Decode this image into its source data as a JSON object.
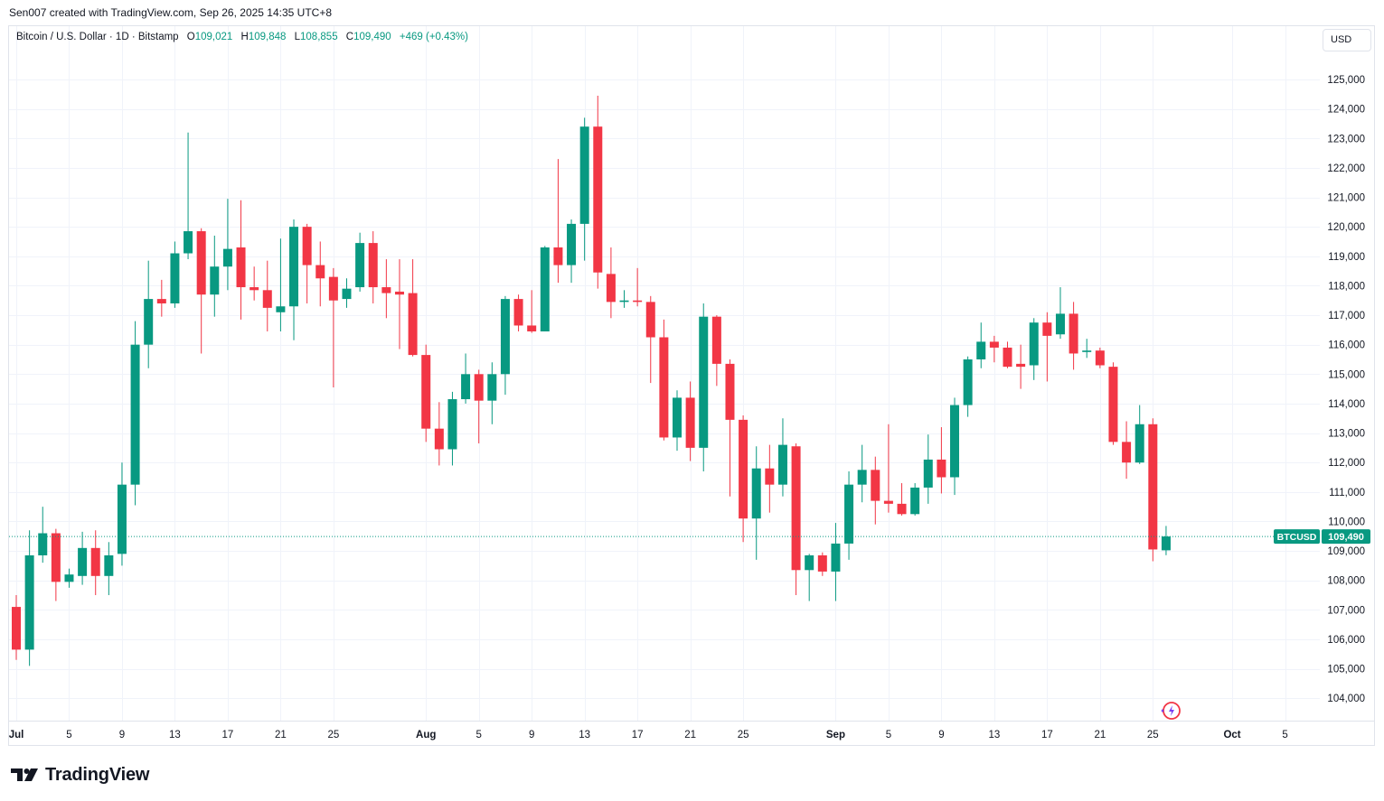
{
  "header": {
    "credit": "Sen007 created with TradingView.com, Sep 26, 2025 14:35 UTC+8"
  },
  "legend": {
    "symbol": "Bitcoin / U.S. Dollar · 1D · Bitstamp",
    "open_label": "O",
    "open": "109,021",
    "high_label": "H",
    "high": "109,848",
    "low_label": "L",
    "low": "108,855",
    "close_label": "C",
    "close": "109,490",
    "change": "+469 (+0.43%)"
  },
  "currency_button": "USD",
  "price_tag": {
    "symbol": "BTCUSD",
    "price": "109,490",
    "value": 109490
  },
  "brand": {
    "name": "TradingView"
  },
  "colors": {
    "up": "#089981",
    "down": "#f23645",
    "grid": "#f0f3fa",
    "axis_text": "#131722",
    "last_price_line": "#089981"
  },
  "chart_data": {
    "type": "candlestick",
    "title": "Bitcoin / U.S. Dollar · 1D · Bitstamp",
    "y_axis": {
      "ticks": [
        104000,
        105000,
        106000,
        107000,
        108000,
        109000,
        110000,
        111000,
        112000,
        113000,
        114000,
        115000,
        116000,
        117000,
        118000,
        119000,
        120000,
        121000,
        122000,
        123000,
        124000,
        125000
      ],
      "tick_labels": [
        "104,000",
        "105,000",
        "106,000",
        "107,000",
        "108,000",
        "109,000",
        "110,000",
        "111,000",
        "112,000",
        "113,000",
        "114,000",
        "115,000",
        "116,000",
        "117,000",
        "118,000",
        "119,000",
        "120,000",
        "121,000",
        "122,000",
        "123,000",
        "124,000",
        "125,000"
      ],
      "position": "right",
      "currency": "USD"
    },
    "x_axis": {
      "first_date": "2025-07-01",
      "tick_labels": [
        {
          "date": "2025-07-01",
          "label": "Jul",
          "bold": true
        },
        {
          "date": "2025-07-05",
          "label": "5"
        },
        {
          "date": "2025-07-09",
          "label": "9"
        },
        {
          "date": "2025-07-13",
          "label": "13"
        },
        {
          "date": "2025-07-17",
          "label": "17"
        },
        {
          "date": "2025-07-21",
          "label": "21"
        },
        {
          "date": "2025-07-25",
          "label": "25"
        },
        {
          "date": "2025-08-01",
          "label": "Aug",
          "bold": true
        },
        {
          "date": "2025-08-05",
          "label": "5"
        },
        {
          "date": "2025-08-09",
          "label": "9"
        },
        {
          "date": "2025-08-13",
          "label": "13"
        },
        {
          "date": "2025-08-17",
          "label": "17"
        },
        {
          "date": "2025-08-21",
          "label": "21"
        },
        {
          "date": "2025-08-25",
          "label": "25"
        },
        {
          "date": "2025-09-01",
          "label": "Sep",
          "bold": true
        },
        {
          "date": "2025-09-05",
          "label": "5"
        },
        {
          "date": "2025-09-09",
          "label": "9"
        },
        {
          "date": "2025-09-13",
          "label": "13"
        },
        {
          "date": "2025-09-17",
          "label": "17"
        },
        {
          "date": "2025-09-21",
          "label": "21"
        },
        {
          "date": "2025-09-25",
          "label": "25"
        },
        {
          "date": "2025-10-01",
          "label": "Oct",
          "bold": true
        },
        {
          "date": "2025-10-05",
          "label": "5"
        }
      ]
    },
    "grid": true,
    "last_price": 109490,
    "candles": [
      {
        "date": "2025-07-01",
        "o": 107100,
        "h": 107500,
        "l": 105300,
        "c": 105650
      },
      {
        "date": "2025-07-02",
        "o": 105650,
        "h": 109700,
        "l": 105100,
        "c": 108850
      },
      {
        "date": "2025-07-03",
        "o": 108850,
        "h": 110500,
        "l": 108600,
        "c": 109600
      },
      {
        "date": "2025-07-04",
        "o": 109600,
        "h": 109750,
        "l": 107300,
        "c": 107950
      },
      {
        "date": "2025-07-05",
        "o": 107950,
        "h": 108400,
        "l": 107750,
        "c": 108200
      },
      {
        "date": "2025-07-06",
        "o": 108150,
        "h": 109650,
        "l": 107850,
        "c": 109100
      },
      {
        "date": "2025-07-07",
        "o": 109100,
        "h": 109700,
        "l": 107500,
        "c": 108150
      },
      {
        "date": "2025-07-08",
        "o": 108150,
        "h": 109300,
        "l": 107500,
        "c": 108850
      },
      {
        "date": "2025-07-09",
        "o": 108900,
        "h": 112000,
        "l": 108500,
        "c": 111250
      },
      {
        "date": "2025-07-10",
        "o": 111250,
        "h": 116800,
        "l": 110550,
        "c": 116000
      },
      {
        "date": "2025-07-11",
        "o": 116000,
        "h": 118850,
        "l": 115200,
        "c": 117550
      },
      {
        "date": "2025-07-12",
        "o": 117550,
        "h": 118200,
        "l": 116950,
        "c": 117400
      },
      {
        "date": "2025-07-13",
        "o": 117400,
        "h": 119500,
        "l": 117250,
        "c": 119100
      },
      {
        "date": "2025-07-14",
        "o": 119100,
        "h": 123200,
        "l": 118900,
        "c": 119850
      },
      {
        "date": "2025-07-15",
        "o": 119850,
        "h": 119950,
        "l": 115700,
        "c": 117700
      },
      {
        "date": "2025-07-16",
        "o": 117700,
        "h": 119700,
        "l": 116950,
        "c": 118650
      },
      {
        "date": "2025-07-17",
        "o": 118650,
        "h": 120950,
        "l": 117850,
        "c": 119250
      },
      {
        "date": "2025-07-18",
        "o": 119300,
        "h": 120900,
        "l": 116850,
        "c": 117950
      },
      {
        "date": "2025-07-19",
        "o": 117950,
        "h": 118650,
        "l": 117500,
        "c": 117850
      },
      {
        "date": "2025-07-20",
        "o": 117850,
        "h": 118850,
        "l": 116450,
        "c": 117250
      },
      {
        "date": "2025-07-21",
        "o": 117100,
        "h": 119600,
        "l": 116450,
        "c": 117300
      },
      {
        "date": "2025-07-22",
        "o": 117300,
        "h": 120250,
        "l": 116150,
        "c": 120000
      },
      {
        "date": "2025-07-23",
        "o": 120000,
        "h": 120100,
        "l": 117400,
        "c": 118700
      },
      {
        "date": "2025-07-24",
        "o": 118700,
        "h": 119500,
        "l": 117300,
        "c": 118250
      },
      {
        "date": "2025-07-25",
        "o": 118300,
        "h": 118600,
        "l": 114550,
        "c": 117500
      },
      {
        "date": "2025-07-26",
        "o": 117550,
        "h": 118250,
        "l": 117250,
        "c": 117900
      },
      {
        "date": "2025-07-27",
        "o": 117950,
        "h": 119800,
        "l": 117800,
        "c": 119450
      },
      {
        "date": "2025-07-28",
        "o": 119450,
        "h": 119850,
        "l": 117400,
        "c": 117950
      },
      {
        "date": "2025-07-29",
        "o": 117950,
        "h": 118900,
        "l": 116900,
        "c": 117750
      },
      {
        "date": "2025-07-30",
        "o": 117800,
        "h": 118900,
        "l": 115850,
        "c": 117700
      },
      {
        "date": "2025-07-31",
        "o": 117750,
        "h": 118900,
        "l": 115600,
        "c": 115650
      },
      {
        "date": "2025-08-01",
        "o": 115650,
        "h": 116000,
        "l": 112700,
        "c": 113150
      },
      {
        "date": "2025-08-02",
        "o": 113150,
        "h": 114050,
        "l": 111900,
        "c": 112450
      },
      {
        "date": "2025-08-03",
        "o": 112450,
        "h": 114400,
        "l": 111900,
        "c": 114150
      },
      {
        "date": "2025-08-04",
        "o": 114150,
        "h": 115700,
        "l": 114000,
        "c": 115000
      },
      {
        "date": "2025-08-05",
        "o": 115000,
        "h": 115150,
        "l": 112650,
        "c": 114100
      },
      {
        "date": "2025-08-06",
        "o": 114100,
        "h": 115400,
        "l": 113300,
        "c": 115000
      },
      {
        "date": "2025-08-07",
        "o": 115000,
        "h": 117650,
        "l": 114300,
        "c": 117550
      },
      {
        "date": "2025-08-08",
        "o": 117550,
        "h": 117700,
        "l": 116450,
        "c": 116650
      },
      {
        "date": "2025-08-09",
        "o": 116650,
        "h": 117850,
        "l": 116400,
        "c": 116450
      },
      {
        "date": "2025-08-10",
        "o": 116450,
        "h": 119350,
        "l": 116450,
        "c": 119300
      },
      {
        "date": "2025-08-11",
        "o": 119300,
        "h": 122300,
        "l": 118100,
        "c": 118700
      },
      {
        "date": "2025-08-12",
        "o": 118700,
        "h": 120250,
        "l": 118100,
        "c": 120100
      },
      {
        "date": "2025-08-13",
        "o": 120100,
        "h": 123700,
        "l": 118850,
        "c": 123400
      },
      {
        "date": "2025-08-14",
        "o": 123400,
        "h": 124450,
        "l": 117900,
        "c": 118450
      },
      {
        "date": "2025-08-15",
        "o": 118400,
        "h": 119300,
        "l": 116900,
        "c": 117450
      },
      {
        "date": "2025-08-16",
        "o": 117450,
        "h": 117850,
        "l": 117250,
        "c": 117500
      },
      {
        "date": "2025-08-17",
        "o": 117500,
        "h": 118600,
        "l": 117300,
        "c": 117450
      },
      {
        "date": "2025-08-18",
        "o": 117450,
        "h": 117650,
        "l": 114700,
        "c": 116250
      },
      {
        "date": "2025-08-19",
        "o": 116250,
        "h": 116850,
        "l": 112750,
        "c": 112850
      },
      {
        "date": "2025-08-20",
        "o": 112850,
        "h": 114450,
        "l": 112400,
        "c": 114200
      },
      {
        "date": "2025-08-21",
        "o": 114200,
        "h": 114750,
        "l": 112050,
        "c": 112500
      },
      {
        "date": "2025-08-22",
        "o": 112500,
        "h": 117400,
        "l": 111700,
        "c": 116950
      },
      {
        "date": "2025-08-23",
        "o": 116950,
        "h": 117000,
        "l": 114600,
        "c": 115350
      },
      {
        "date": "2025-08-24",
        "o": 115350,
        "h": 115500,
        "l": 110850,
        "c": 113450
      },
      {
        "date": "2025-08-25",
        "o": 113450,
        "h": 113600,
        "l": 109300,
        "c": 110100
      },
      {
        "date": "2025-08-26",
        "o": 110100,
        "h": 112550,
        "l": 108700,
        "c": 111800
      },
      {
        "date": "2025-08-27",
        "o": 111800,
        "h": 112600,
        "l": 110300,
        "c": 111250
      },
      {
        "date": "2025-08-28",
        "o": 111250,
        "h": 113500,
        "l": 110850,
        "c": 112600
      },
      {
        "date": "2025-08-29",
        "o": 112550,
        "h": 112650,
        "l": 107500,
        "c": 108350
      },
      {
        "date": "2025-08-30",
        "o": 108350,
        "h": 108900,
        "l": 107300,
        "c": 108850
      },
      {
        "date": "2025-08-31",
        "o": 108850,
        "h": 108950,
        "l": 108150,
        "c": 108300
      },
      {
        "date": "2025-09-01",
        "o": 108300,
        "h": 109950,
        "l": 107300,
        "c": 109250
      },
      {
        "date": "2025-09-02",
        "o": 109250,
        "h": 111700,
        "l": 108700,
        "c": 111250
      },
      {
        "date": "2025-09-03",
        "o": 111250,
        "h": 112600,
        "l": 110650,
        "c": 111750
      },
      {
        "date": "2025-09-04",
        "o": 111750,
        "h": 112200,
        "l": 109900,
        "c": 110700
      },
      {
        "date": "2025-09-05",
        "o": 110700,
        "h": 113300,
        "l": 110300,
        "c": 110600
      },
      {
        "date": "2025-09-06",
        "o": 110600,
        "h": 111300,
        "l": 110200,
        "c": 110250
      },
      {
        "date": "2025-09-07",
        "o": 110250,
        "h": 111300,
        "l": 110200,
        "c": 111150
      },
      {
        "date": "2025-09-08",
        "o": 111150,
        "h": 112950,
        "l": 110600,
        "c": 112100
      },
      {
        "date": "2025-09-09",
        "o": 112100,
        "h": 113200,
        "l": 110950,
        "c": 111500
      },
      {
        "date": "2025-09-10",
        "o": 111500,
        "h": 114200,
        "l": 110900,
        "c": 113950
      },
      {
        "date": "2025-09-11",
        "o": 113950,
        "h": 115600,
        "l": 113550,
        "c": 115500
      },
      {
        "date": "2025-09-12",
        "o": 115500,
        "h": 116750,
        "l": 115200,
        "c": 116100
      },
      {
        "date": "2025-09-13",
        "o": 116100,
        "h": 116300,
        "l": 115400,
        "c": 115900
      },
      {
        "date": "2025-09-14",
        "o": 115900,
        "h": 116100,
        "l": 115200,
        "c": 115250
      },
      {
        "date": "2025-09-15",
        "o": 115350,
        "h": 116000,
        "l": 114500,
        "c": 115250
      },
      {
        "date": "2025-09-16",
        "o": 115300,
        "h": 116900,
        "l": 114800,
        "c": 116750
      },
      {
        "date": "2025-09-17",
        "o": 116750,
        "h": 117100,
        "l": 114750,
        "c": 116300
      },
      {
        "date": "2025-09-18",
        "o": 116350,
        "h": 117950,
        "l": 116200,
        "c": 117050
      },
      {
        "date": "2025-09-19",
        "o": 117050,
        "h": 117450,
        "l": 115150,
        "c": 115700
      },
      {
        "date": "2025-09-20",
        "o": 115750,
        "h": 116200,
        "l": 115550,
        "c": 115800
      },
      {
        "date": "2025-09-21",
        "o": 115800,
        "h": 115900,
        "l": 115200,
        "c": 115300
      },
      {
        "date": "2025-09-22",
        "o": 115250,
        "h": 115400,
        "l": 112600,
        "c": 112700
      },
      {
        "date": "2025-09-23",
        "o": 112700,
        "h": 113400,
        "l": 111450,
        "c": 112000
      },
      {
        "date": "2025-09-24",
        "o": 112000,
        "h": 113950,
        "l": 111950,
        "c": 113300
      },
      {
        "date": "2025-09-25",
        "o": 113300,
        "h": 113500,
        "l": 108650,
        "c": 109050
      },
      {
        "date": "2025-09-26",
        "o": 109021,
        "h": 109848,
        "l": 108855,
        "c": 109490
      }
    ]
  }
}
